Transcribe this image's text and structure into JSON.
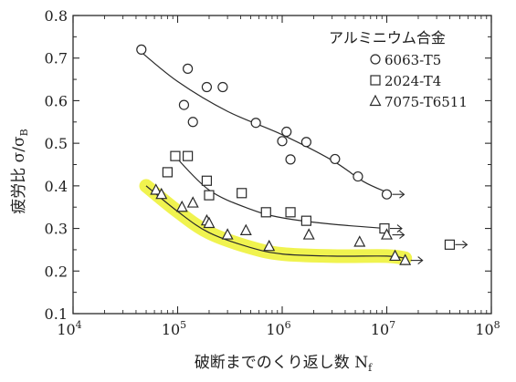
{
  "chart_data": {
    "type": "scatter",
    "title": "",
    "legend_title": "アルミニウム合金",
    "legend_position": "top-right",
    "ylabel": "疲労比 σ/σ",
    "ylabel_sub": "B",
    "xlabel": "破断までのくり返し数 N",
    "xlabel_sub": "f",
    "x_scale": "log",
    "xlim": [
      10000,
      100000000
    ],
    "ylim": [
      0.1,
      0.8
    ],
    "grid": false,
    "x_ticks": [
      {
        "value": 10000,
        "base": "10",
        "exp": "4"
      },
      {
        "value": 100000,
        "base": "10",
        "exp": "5"
      },
      {
        "value": 1000000,
        "base": "10",
        "exp": "6"
      },
      {
        "value": 10000000,
        "base": "10",
        "exp": "7"
      },
      {
        "value": 100000000,
        "base": "10",
        "exp": "8"
      }
    ],
    "y_ticks": [
      {
        "value": 0.1,
        "label": "0.1"
      },
      {
        "value": 0.2,
        "label": "0.2"
      },
      {
        "value": 0.3,
        "label": "0.3"
      },
      {
        "value": 0.4,
        "label": "0.4"
      },
      {
        "value": 0.5,
        "label": "0.5"
      },
      {
        "value": 0.6,
        "label": "0.6"
      },
      {
        "value": 0.7,
        "label": "0.7"
      },
      {
        "value": 0.8,
        "label": "0.8"
      }
    ],
    "series": [
      {
        "name": "6063-T5",
        "marker": "circle",
        "highlight": false,
        "points": [
          [
            45000,
            0.72
          ],
          [
            115000,
            0.59
          ],
          [
            125000,
            0.675
          ],
          [
            140000,
            0.55
          ],
          [
            190000,
            0.632
          ],
          [
            270000,
            0.632
          ],
          [
            560000,
            0.548
          ],
          [
            1000000,
            0.505
          ],
          [
            1100000,
            0.527
          ],
          [
            1200000,
            0.462
          ],
          [
            1700000,
            0.503
          ],
          [
            3200000,
            0.463
          ],
          [
            5300000,
            0.422
          ],
          [
            10000000,
            0.38
          ]
        ],
        "curve": [
          [
            42000,
            0.72
          ],
          [
            100000,
            0.645
          ],
          [
            300000,
            0.575
          ],
          [
            1000000,
            0.52
          ],
          [
            3000000,
            0.46
          ],
          [
            6000000,
            0.41
          ],
          [
            10000000,
            0.385
          ]
        ],
        "runouts": [
          [
            10000000,
            0.38
          ]
        ]
      },
      {
        "name": "2024-T4",
        "marker": "square",
        "highlight": false,
        "points": [
          [
            80000,
            0.432
          ],
          [
            95000,
            0.47
          ],
          [
            125000,
            0.47
          ],
          [
            190000,
            0.412
          ],
          [
            200000,
            0.378
          ],
          [
            410000,
            0.383
          ],
          [
            700000,
            0.338
          ],
          [
            1200000,
            0.338
          ],
          [
            1700000,
            0.318
          ],
          [
            9500000,
            0.3
          ],
          [
            40000000,
            0.262
          ]
        ],
        "curve": [
          [
            90000,
            0.475
          ],
          [
            200000,
            0.39
          ],
          [
            500000,
            0.345
          ],
          [
            1000000,
            0.325
          ],
          [
            3000000,
            0.31
          ],
          [
            10000000,
            0.3
          ]
        ],
        "runouts": [
          [
            9500000,
            0.3
          ],
          [
            40000000,
            0.262
          ]
        ]
      },
      {
        "name": "7075-T6511",
        "marker": "triangle",
        "highlight": true,
        "points": [
          [
            62000,
            0.39
          ],
          [
            70000,
            0.38
          ],
          [
            110000,
            0.35
          ],
          [
            140000,
            0.36
          ],
          [
            190000,
            0.318
          ],
          [
            200000,
            0.312
          ],
          [
            300000,
            0.285
          ],
          [
            450000,
            0.295
          ],
          [
            750000,
            0.258
          ],
          [
            1800000,
            0.285
          ],
          [
            5500000,
            0.268
          ],
          [
            10000000,
            0.285
          ],
          [
            12000000,
            0.235
          ],
          [
            15000000,
            0.225
          ]
        ],
        "curve": [
          [
            50000,
            0.4
          ],
          [
            100000,
            0.34
          ],
          [
            200000,
            0.29
          ],
          [
            500000,
            0.255
          ],
          [
            1000000,
            0.24
          ],
          [
            3000000,
            0.235
          ],
          [
            10000000,
            0.235
          ],
          [
            15000000,
            0.23
          ]
        ],
        "runouts": [
          [
            10000000,
            0.285
          ],
          [
            15000000,
            0.225
          ]
        ]
      }
    ]
  }
}
